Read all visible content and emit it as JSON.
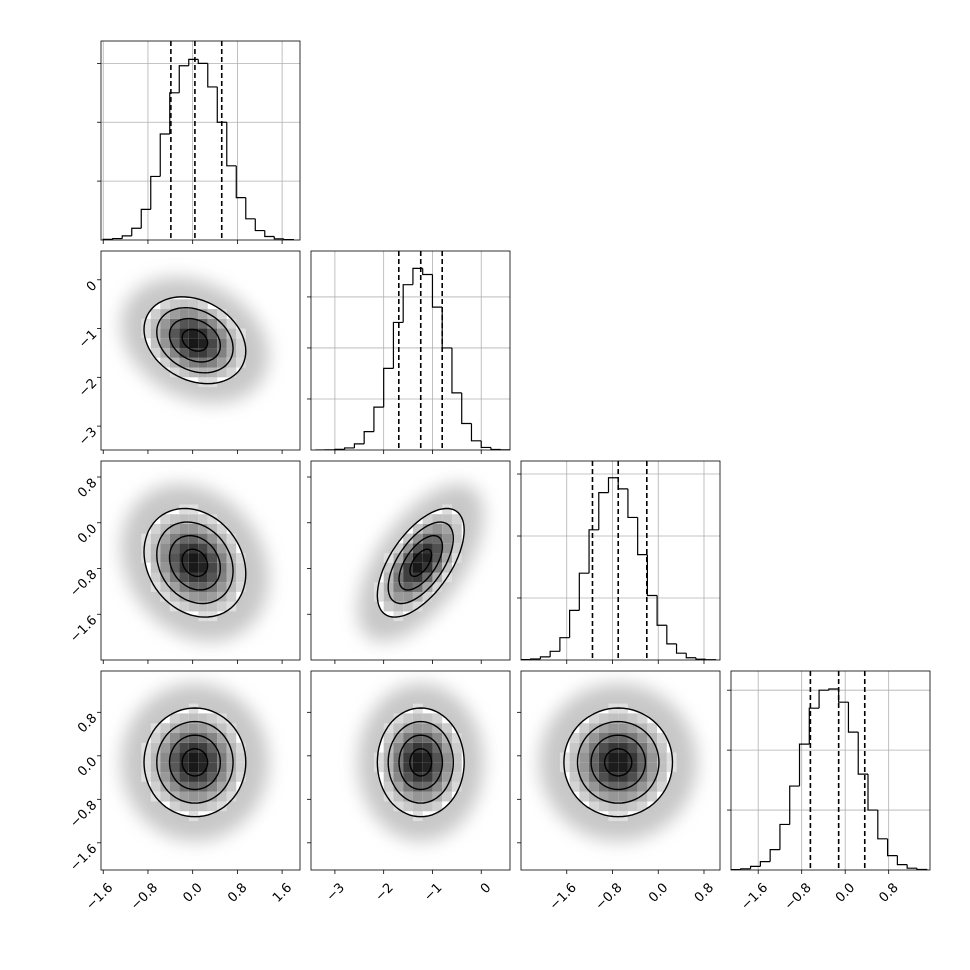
{
  "chart_data": {
    "type": "corner",
    "grid": true,
    "levels": [
      0.5,
      1,
      1.5,
      2
    ],
    "params": [
      {
        "xlim": [
          -1.64,
          1.92
        ],
        "xticks": [
          {
            "value": -1.6,
            "label": "−1.6"
          },
          {
            "value": -0.8,
            "label": "−0.8"
          },
          {
            "value": 0,
            "label": "0.0"
          },
          {
            "value": 0.8,
            "label": "0.8"
          },
          {
            "value": 1.6,
            "label": "1.6"
          }
        ],
        "quantiles": [
          -0.39,
          0.04,
          0.52
        ],
        "bins": [
          -1.6,
          -1.43,
          -1.26,
          -1.09,
          -0.92,
          -0.75,
          -0.58,
          -0.41,
          -0.24,
          -0.07,
          0.1,
          0.27,
          0.44,
          0.61,
          0.78,
          0.95,
          1.12,
          1.29,
          1.46,
          1.63,
          1.8
        ],
        "counts": [
          5,
          12,
          35,
          100,
          260,
          540,
          900,
          1250,
          1480,
          1534,
          1500,
          1300,
          1000,
          630,
          360,
          180,
          80,
          30,
          10,
          3
        ],
        "ylim": [
          0,
          1690
        ],
        "yticks": [
          500,
          1000,
          1500
        ]
      },
      {
        "xlim": [
          -3.49,
          0.59
        ],
        "xticks": [
          {
            "value": -3,
            "label": "−3"
          },
          {
            "value": -2,
            "label": "−2"
          },
          {
            "value": -1,
            "label": "−1"
          },
          0
        ],
        "quantiles": [
          -1.69,
          -1.24,
          -0.8
        ],
        "bins": [
          -3.4,
          -3.2,
          -3.0,
          -2.8,
          -2.6,
          -2.4,
          -2.2,
          -2.0,
          -1.8,
          -1.6,
          -1.4,
          -1.2,
          -1.0,
          -0.8,
          -0.6,
          -0.4,
          -0.2,
          0.0,
          0.2,
          0.4,
          0.6
        ],
        "counts": [
          0,
          2,
          6,
          20,
          60,
          180,
          420,
          800,
          1250,
          1620,
          1780,
          1720,
          1400,
          1000,
          560,
          260,
          90,
          25,
          5,
          1
        ],
        "ylim": [
          0,
          1950
        ],
        "yticks": [
          500,
          1000,
          1500
        ]
      },
      {
        "xlim": [
          -2.4,
          1.08
        ],
        "xticks": [
          {
            "value": -1.6,
            "label": "−1.6"
          },
          {
            "value": -0.8,
            "label": "−0.8"
          },
          {
            "value": 0,
            "label": "0.0"
          },
          {
            "value": 0.8,
            "label": "0.8"
          }
        ],
        "quantiles": [
          -1.15,
          -0.7,
          -0.2
        ],
        "bins": [
          -2.4,
          -2.23,
          -2.06,
          -1.89,
          -1.72,
          -1.55,
          -1.38,
          -1.21,
          -1.04,
          -0.87,
          -0.7,
          -0.53,
          -0.36,
          -0.19,
          -0.02,
          0.15,
          0.32,
          0.49,
          0.66,
          0.83,
          1.0
        ],
        "counts": [
          3,
          8,
          25,
          70,
          180,
          400,
          700,
          1050,
          1350,
          1470,
          1380,
          1150,
          850,
          520,
          280,
          130,
          55,
          18,
          6,
          2
        ],
        "ylim": [
          0,
          1605
        ],
        "yticks": [
          500,
          1000,
          1500
        ]
      },
      {
        "xlim": [
          -2.1,
          1.56
        ],
        "xticks": [
          {
            "value": -1.6,
            "label": "−1.6"
          },
          {
            "value": -0.8,
            "label": "−0.8"
          },
          {
            "value": 0,
            "label": "0.0"
          },
          {
            "value": 0.8,
            "label": "0.8"
          }
        ],
        "quantiles": [
          -0.64,
          -0.12,
          0.36
        ],
        "bins": [
          -2.1,
          -1.92,
          -1.74,
          -1.56,
          -1.38,
          -1.2,
          -1.02,
          -0.84,
          -0.66,
          -0.48,
          -0.3,
          -0.12,
          0.06,
          0.24,
          0.42,
          0.6,
          0.78,
          0.96,
          1.14,
          1.32,
          1.5
        ],
        "counts": [
          3,
          10,
          30,
          70,
          170,
          380,
          700,
          1050,
          1350,
          1500,
          1510,
          1400,
          1150,
          800,
          500,
          260,
          120,
          45,
          15,
          4
        ],
        "ylim": [
          0,
          1660
        ],
        "yticks": [
          500,
          1000,
          1500
        ]
      }
    ],
    "pairs": [
      [
        {
          "corr": -0.25
        }
      ],
      [
        {
          "corr": -0.2
        },
        {
          "corr": 0.6
        }
      ],
      [
        {
          "corr": 0
        },
        {
          "corr": 0
        },
        {
          "corr": 0
        }
      ]
    ]
  }
}
